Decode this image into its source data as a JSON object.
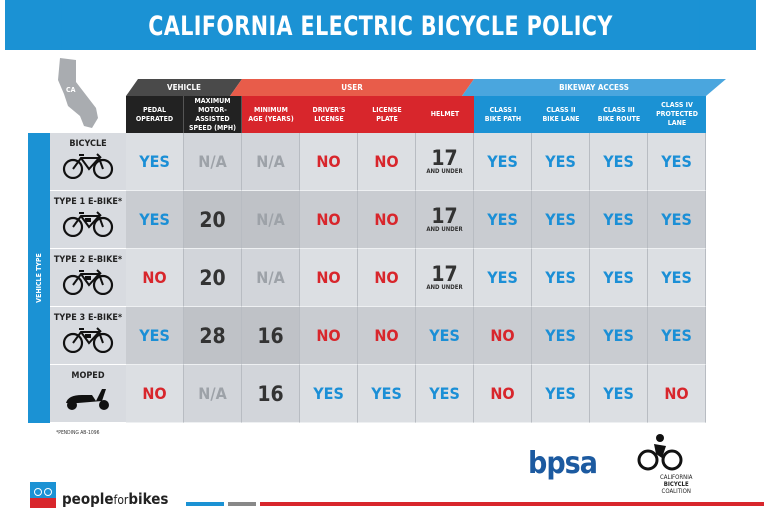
{
  "title": "CALIFORNIA ELECTRIC BICYCLE POLICY",
  "state_label": "CA",
  "colors": {
    "yes": "#1b8fd6",
    "no": "#d8262c",
    "na": "#9da2a8",
    "vehicle": "#2b2b2b",
    "user": "#d8262c",
    "bikeway": "#1b92d4"
  },
  "groups": [
    {
      "label": "VEHICLE",
      "span": 2
    },
    {
      "label": "USER",
      "span": 4
    },
    {
      "label": "BIKEWAY ACCESS",
      "span": 4
    }
  ],
  "columns": [
    "PEDAL\nOPERATED",
    "MAXIMUM\nMOTOR-ASSISTED\nSPEED (MPH)",
    "MINIMUM\nAGE (YEARS)",
    "DRIVER'S\nLICENSE",
    "LICENSE\nPLATE",
    "HELMET",
    "CLASS I\nBIKE PATH",
    "CLASS II\nBIKE LANE",
    "CLASS III\nBIKE ROUTE",
    "CLASS IV\nPROTECTED LANE"
  ],
  "row_axis_label": "VEHICLE TYPE",
  "rows": [
    {
      "name": "BICYCLE",
      "icon": "bicycle-icon",
      "cells": [
        "YES",
        "N/A",
        "N/A",
        "NO",
        "NO",
        "17",
        "YES",
        "YES",
        "YES",
        "YES"
      ]
    },
    {
      "name": "TYPE 1 E-BIKE*",
      "icon": "ebike-icon",
      "cells": [
        "YES",
        "20",
        "N/A",
        "NO",
        "NO",
        "17",
        "YES",
        "YES",
        "YES",
        "YES"
      ]
    },
    {
      "name": "TYPE 2 E-BIKE*",
      "icon": "ebike-icon",
      "cells": [
        "NO",
        "20",
        "N/A",
        "NO",
        "NO",
        "17",
        "YES",
        "YES",
        "YES",
        "YES"
      ]
    },
    {
      "name": "TYPE 3 E-BIKE*",
      "icon": "ebike-icon",
      "cells": [
        "YES",
        "28",
        "16",
        "NO",
        "NO",
        "YES",
        "NO",
        "YES",
        "YES",
        "YES"
      ]
    },
    {
      "name": "MOPED",
      "icon": "moped-icon",
      "cells": [
        "NO",
        "N/A",
        "16",
        "YES",
        "YES",
        "YES",
        "NO",
        "YES",
        "YES",
        "NO"
      ]
    }
  ],
  "helmet_sub": "AND UNDER",
  "footnote": "*PENDING AB-1096",
  "logos": {
    "peopleforbikes_a": "people",
    "peopleforbikes_b": "for",
    "peopleforbikes_c": "bikes",
    "bpsa": "bpsa",
    "cbc": [
      "CALIFORNIA",
      "BICYCLE",
      "COALITION"
    ]
  }
}
